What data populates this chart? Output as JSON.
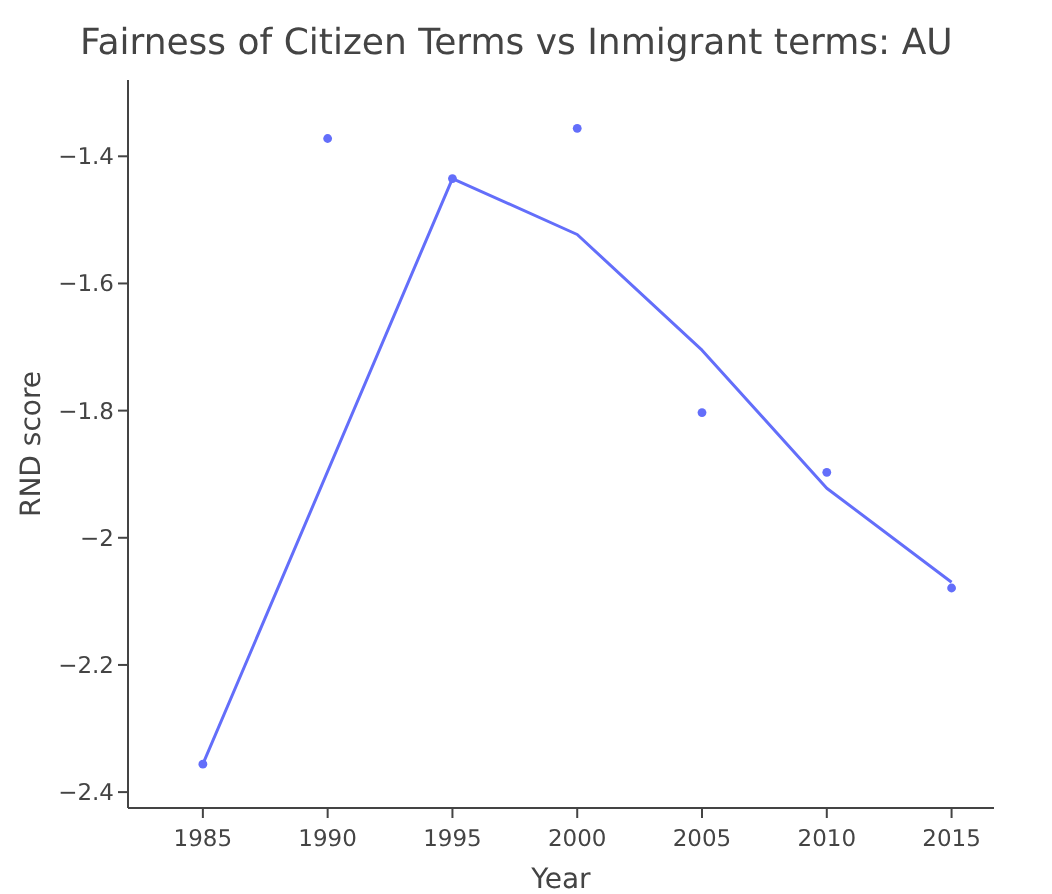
{
  "chart_data": {
    "type": "scatter",
    "title": "Fairness of Citizen Terms vs Inmigrant terms: AU",
    "xlabel": "Year",
    "ylabel": "RND score",
    "xlim": [
      1982,
      2016.7
    ],
    "xticks": [
      1985,
      1990,
      1995,
      2000,
      2005,
      2010,
      2015
    ],
    "ylim": [
      -2.425,
      -1.28
    ],
    "yticks": [
      {
        "value": -1.4,
        "label": "−1.4"
      },
      {
        "value": -1.6,
        "label": "−1.6"
      },
      {
        "value": -1.8,
        "label": "−1.8"
      },
      {
        "value": -2,
        "label": "−2"
      },
      {
        "value": -2.2,
        "label": "−2.2"
      },
      {
        "value": -2.4,
        "label": "−2.4"
      }
    ],
    "grid": false,
    "series": [
      {
        "color": "#636efa",
        "marker": "circle",
        "x": [
          1985,
          1990,
          1995,
          2000,
          2005,
          2010,
          2015
        ],
        "values": [
          -2.356,
          -1.372,
          -1.435,
          -1.356,
          -1.803,
          -1.897,
          -2.079
        ]
      },
      {
        "type": "line",
        "color": "#636efa",
        "marker": "none",
        "x": [
          1985,
          1995,
          2000,
          2005,
          2010,
          2015
        ],
        "values": [
          -2.356,
          -1.435,
          -1.523,
          -1.705,
          -1.922,
          -2.07
        ]
      }
    ]
  }
}
